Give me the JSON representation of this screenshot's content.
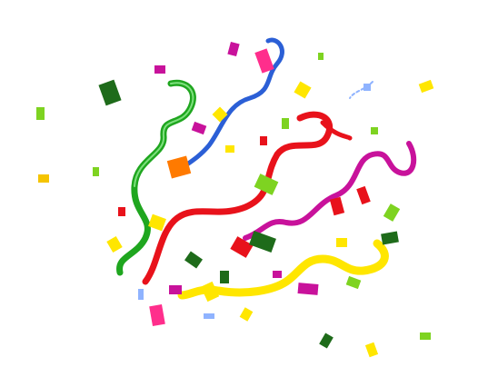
{
  "scene": {
    "background": "#ffffff",
    "palette": {
      "green": "#1fa61f",
      "dark_green": "#1e6b1a",
      "lime": "#7ed321",
      "red": "#e8121b",
      "magenta": "#c8129b",
      "pink": "#ff2e8c",
      "blue": "#2b5fd6",
      "light_blue": "#8fb3ff",
      "yellow": "#ffe600",
      "gold": "#f5c400",
      "orange": "#ff7a00",
      "purple": "#a020c0"
    }
  }
}
